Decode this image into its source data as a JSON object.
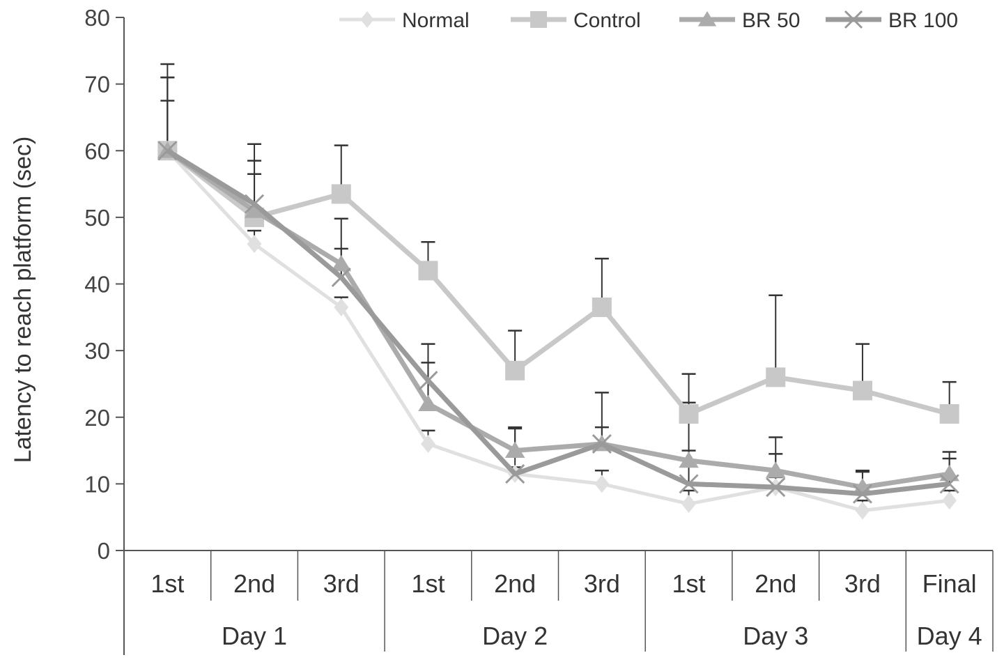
{
  "chart_data": {
    "type": "line",
    "title": "",
    "xlabel": "",
    "ylabel": "Latency to reach platform (sec)",
    "ylim": [
      0,
      80
    ],
    "yticks": [
      0,
      10,
      20,
      30,
      40,
      50,
      60,
      70,
      80
    ],
    "grid": false,
    "legend_position": "top-right",
    "categories": [
      "1st",
      "2nd",
      "3rd",
      "1st",
      "2nd",
      "3rd",
      "1st",
      "2nd",
      "3rd",
      "Final"
    ],
    "groups": [
      {
        "label": "Day 1",
        "count": 3
      },
      {
        "label": "Day 2",
        "count": 3
      },
      {
        "label": "Day 3",
        "count": 3
      },
      {
        "label": "Day 4",
        "count": 1
      }
    ],
    "series": [
      {
        "name": "Normal",
        "marker": "diamond",
        "color": "#e0e0e0",
        "values": [
          60,
          46,
          36.5,
          16,
          11.5,
          10,
          7,
          9.5,
          6,
          7.5
        ],
        "error_upper": [
          67.5,
          48,
          38,
          18,
          12.5,
          12,
          9,
          11,
          7.5,
          9
        ]
      },
      {
        "name": "Control",
        "marker": "square",
        "color": "#c8c8c8",
        "values": [
          60,
          50,
          53.5,
          42,
          27,
          36.5,
          20.5,
          26,
          24,
          20.5
        ],
        "error_upper": [
          73,
          61,
          60.8,
          46.3,
          33,
          43.8,
          26.5,
          38.3,
          31,
          25.3
        ]
      },
      {
        "name": "BR 50",
        "marker": "triangle",
        "color": "#ababab",
        "values": [
          60,
          51,
          43,
          22,
          15,
          16,
          13.5,
          12,
          9.5,
          11.5
        ],
        "error_upper": [
          71,
          58.5,
          49.8,
          28.2,
          18.3,
          18.5,
          15,
          17,
          11.8,
          14.8
        ]
      },
      {
        "name": "BR 100",
        "marker": "x",
        "color": "#9a9a9a",
        "values": [
          60,
          52,
          41,
          25.5,
          11.5,
          16,
          10,
          9.5,
          8.5,
          10
        ],
        "error_upper": [
          71,
          56.5,
          45.3,
          31,
          18.5,
          23.7,
          22.2,
          14.5,
          12,
          13.8
        ]
      }
    ]
  }
}
